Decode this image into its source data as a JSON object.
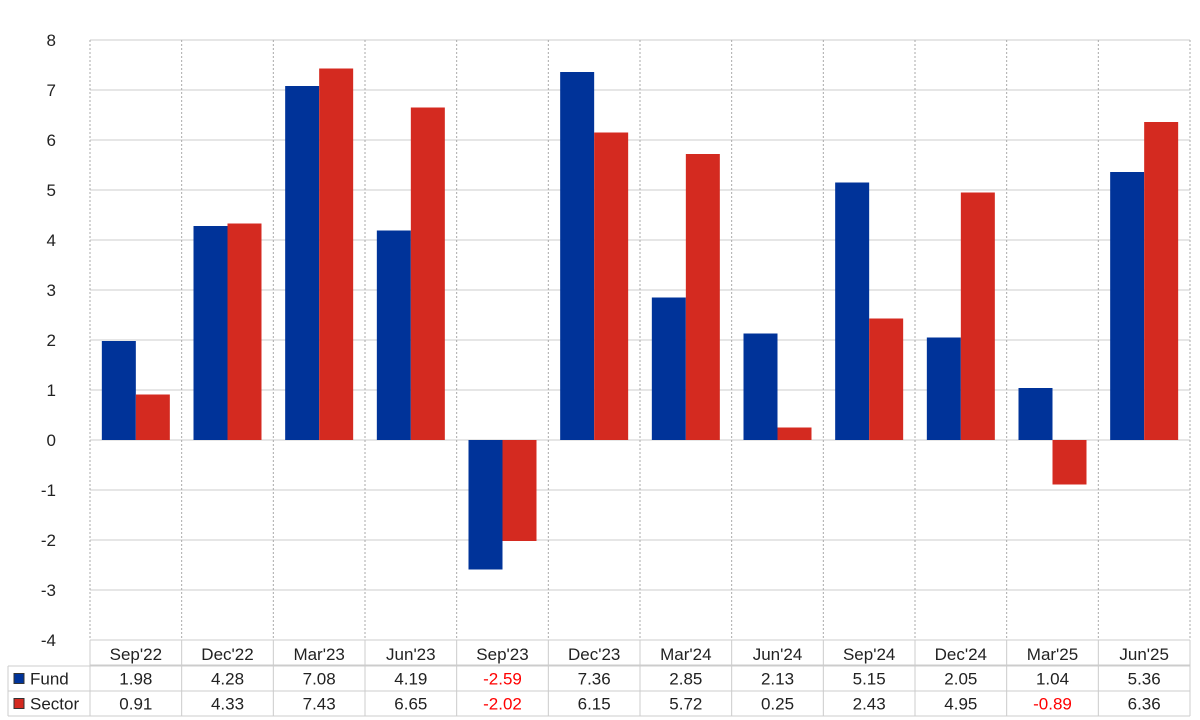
{
  "chart_data": {
    "type": "bar",
    "categories": [
      "Sep'22",
      "Dec'22",
      "Mar'23",
      "Jun'23",
      "Sep'23",
      "Dec'23",
      "Mar'24",
      "Jun'24",
      "Sep'24",
      "Dec'24",
      "Mar'25",
      "Jun'25"
    ],
    "series": [
      {
        "name": "Fund",
        "color": "#003399",
        "values": [
          1.98,
          4.28,
          7.08,
          4.19,
          -2.59,
          7.36,
          2.85,
          2.13,
          5.15,
          2.05,
          1.04,
          5.36
        ],
        "labels": [
          "1.98",
          "4.28",
          "7.08",
          "4.19",
          "-2.59",
          "7.36",
          "2.85",
          "2.13",
          "5.15",
          "2.05",
          "1.04",
          "5.36"
        ]
      },
      {
        "name": "Sector",
        "color": "#d42a20",
        "values": [
          0.91,
          4.33,
          7.43,
          6.65,
          -2.02,
          6.15,
          5.72,
          0.25,
          2.43,
          4.95,
          -0.89,
          6.36
        ],
        "labels": [
          "0.91",
          "4.33",
          "7.43",
          "6.65",
          "-2.02",
          "6.15",
          "5.72",
          "0.25",
          "2.43",
          "4.95",
          "-0.89",
          "6.36"
        ]
      }
    ],
    "ylim": [
      -4,
      8
    ],
    "yticks": [
      "-4",
      "-3",
      "-2",
      "-1",
      "0",
      "1",
      "2",
      "3",
      "4",
      "5",
      "6",
      "7",
      "8"
    ],
    "negative_label_color": "#ff0000",
    "grid": true,
    "legend": "data-table-rows",
    "title": "",
    "xlabel": "",
    "ylabel": ""
  }
}
